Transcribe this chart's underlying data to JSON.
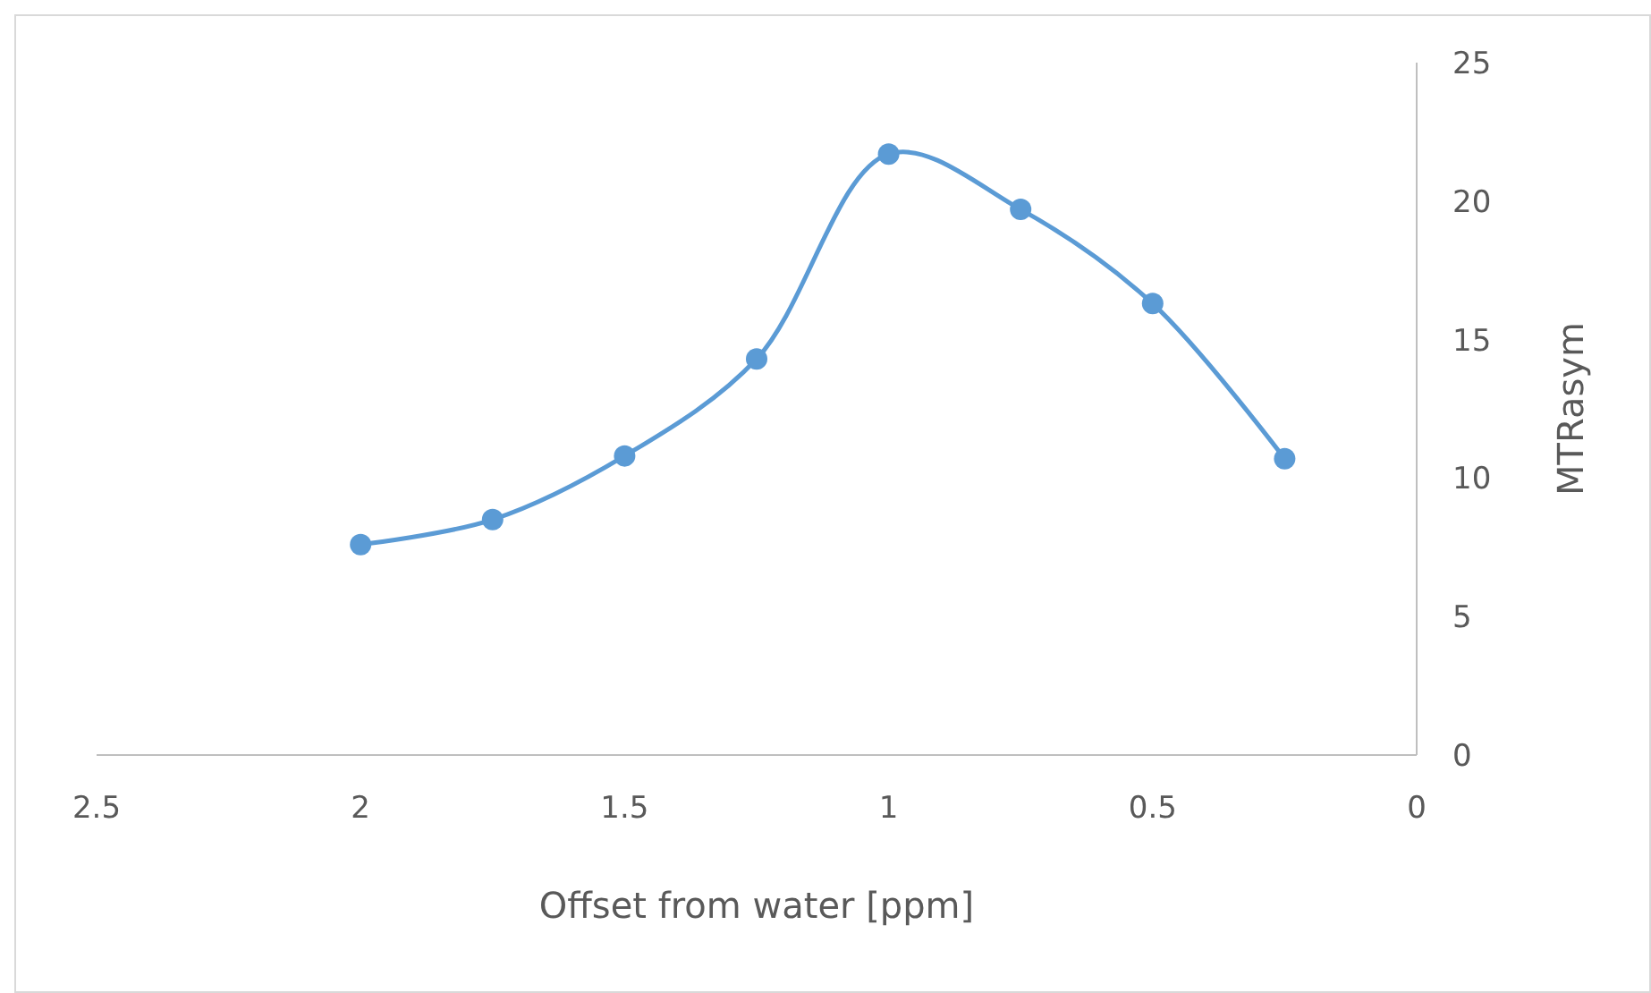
{
  "chart_data": {
    "type": "line",
    "xlabel": "Offset from water [ppm]",
    "ylabel": "MTRasym",
    "x": [
      2,
      1.75,
      1.5,
      1.25,
      1,
      0.75,
      0.5,
      0.25
    ],
    "series": [
      {
        "color": "#5b9bd5",
        "values": [
          7.6,
          8.5,
          10.8,
          14.3,
          21.7,
          19.7,
          16.3,
          10.7
        ]
      }
    ],
    "xlim": [
      2.5,
      0
    ],
    "xticks": [
      2.5,
      2,
      1.5,
      1,
      0.5,
      0
    ],
    "ylim": [
      0,
      25
    ],
    "yticks": [
      0,
      5,
      10,
      15,
      20,
      25
    ],
    "grid": false,
    "marker": "circle",
    "line_style": "solid"
  }
}
